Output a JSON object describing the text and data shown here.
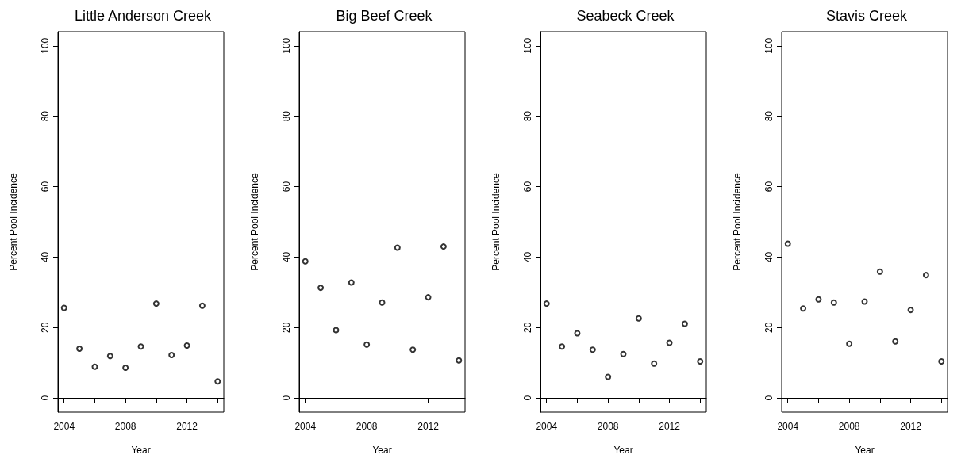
{
  "chart_data": [
    {
      "type": "scatter",
      "title": "Little Anderson Creek",
      "xlabel": "Year",
      "ylabel": "Percent Pool Incidence",
      "marker": "circle",
      "color": "#000000",
      "x": [
        2004,
        2005,
        2006,
        2007,
        2008,
        2009,
        2010,
        2011,
        2012,
        2013,
        2014
      ],
      "values": [
        25.6,
        14.0,
        8.9,
        11.9,
        8.6,
        14.6,
        26.8,
        12.2,
        14.9,
        26.2,
        4.7
      ],
      "xlim": [
        2003.6,
        2014.4
      ],
      "xticks": [
        2004,
        {
          "value": 2006,
          "label": null
        },
        2008,
        {
          "value": 2010,
          "label": null
        },
        2012,
        {
          "value": 2014,
          "label": null
        }
      ],
      "ylim": [
        -4,
        104
      ],
      "yticks": [
        0,
        20,
        40,
        60,
        80,
        100
      ]
    },
    {
      "type": "scatter",
      "title": "Big Beef Creek",
      "xlabel": "Year",
      "ylabel": "Percent Pool Incidence",
      "marker": "circle",
      "color": "#000000",
      "x": [
        2004,
        2005,
        2006,
        2007,
        2008,
        2009,
        2010,
        2011,
        2012,
        2013,
        2014
      ],
      "values": [
        38.8,
        31.3,
        19.3,
        32.8,
        15.2,
        27.1,
        42.7,
        13.7,
        28.6,
        43.0,
        10.7
      ],
      "xlim": [
        2003.6,
        2014.4
      ],
      "xticks": [
        2004,
        {
          "value": 2006,
          "label": null
        },
        2008,
        {
          "value": 2010,
          "label": null
        },
        2012,
        {
          "value": 2014,
          "label": null
        }
      ],
      "ylim": [
        -4,
        104
      ],
      "yticks": [
        0,
        20,
        40,
        60,
        80,
        100
      ]
    },
    {
      "type": "scatter",
      "title": "Seabeck Creek",
      "xlabel": "Year",
      "ylabel": "Percent Pool Incidence",
      "marker": "circle",
      "color": "#000000",
      "x": [
        2004,
        2005,
        2006,
        2007,
        2008,
        2009,
        2010,
        2011,
        2012,
        2013,
        2014
      ],
      "values": [
        26.8,
        14.6,
        18.4,
        13.7,
        6.0,
        12.5,
        22.6,
        9.8,
        15.7,
        21.1,
        10.4
      ],
      "xlim": [
        2003.6,
        2014.4
      ],
      "xticks": [
        2004,
        {
          "value": 2006,
          "label": null
        },
        2008,
        {
          "value": 2010,
          "label": null
        },
        2012,
        {
          "value": 2014,
          "label": null
        }
      ],
      "ylim": [
        -4,
        104
      ],
      "yticks": [
        0,
        20,
        40,
        60,
        80,
        100
      ]
    },
    {
      "type": "scatter",
      "title": "Stavis Creek",
      "xlabel": "Year",
      "ylabel": "Percent Pool Incidence",
      "marker": "circle",
      "color": "#000000",
      "x": [
        2004,
        2005,
        2006,
        2007,
        2008,
        2009,
        2010,
        2011,
        2012,
        2013,
        2014
      ],
      "values": [
        43.8,
        25.4,
        28.0,
        27.1,
        15.4,
        27.4,
        35.9,
        16.1,
        25.0,
        34.9,
        10.4
      ],
      "xlim": [
        2003.6,
        2014.4
      ],
      "xticks": [
        2004,
        {
          "value": 2006,
          "label": null
        },
        2008,
        {
          "value": 2010,
          "label": null
        },
        2012,
        {
          "value": 2014,
          "label": null
        }
      ],
      "ylim": [
        -4,
        104
      ],
      "yticks": [
        0,
        20,
        40,
        60,
        80,
        100
      ]
    }
  ]
}
